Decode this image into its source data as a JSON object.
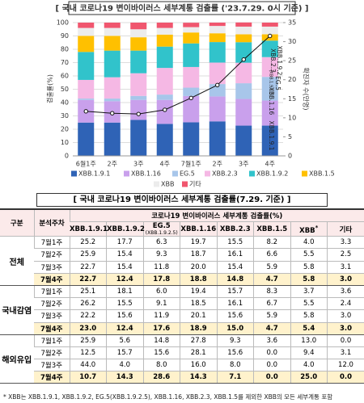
{
  "chart_data": {
    "type": "bar",
    "stacked": true,
    "title": "[ 국내 코로나19 변이바이러스 세부계통 검출률 ('23.7.29. 0시 기준) ]",
    "y_label": "검출률(%)",
    "y2_label": "확진자 수(만명)",
    "categories": [
      "6월1주",
      "2주",
      "3주",
      "4주",
      "7월1주",
      "2주",
      "3주",
      "4주"
    ],
    "series": [
      {
        "name": "XBB.1.9.1",
        "color": "#2f63b6",
        "values": [
          25,
          25,
          27,
          24,
          25.2,
          25.9,
          22.7,
          22.7
        ]
      },
      {
        "name": "XBB.1.16",
        "color": "#c9a0ec",
        "values": [
          17,
          16,
          15,
          18,
          19.7,
          18.7,
          20.0,
          18.8
        ]
      },
      {
        "name": "EG.5",
        "color": "#a8c6ea",
        "values": [
          1,
          2,
          3,
          4,
          6.3,
          9.3,
          11.8,
          17.8
        ]
      },
      {
        "name": "XBB.2.3",
        "color": "#f5b8e4",
        "values": [
          14,
          16,
          17,
          20,
          15.5,
          16.1,
          15.4,
          14.8
        ]
      },
      {
        "name": "XBB.1.9.2",
        "color": "#31c3cb",
        "values": [
          21,
          20,
          17,
          16,
          17.7,
          15.4,
          15.4,
          12.4
        ]
      },
      {
        "name": "XBB.1.5",
        "color": "#ffc000",
        "values": [
          12,
          11,
          10,
          9,
          8.2,
          6.6,
          5.9,
          4.7
        ]
      },
      {
        "name": "XBB",
        "color": "#ececec",
        "values": [
          6,
          6,
          6,
          5,
          4.0,
          5.5,
          5.8,
          5.8
        ]
      },
      {
        "name": "기타",
        "color": "#f0566e",
        "values": [
          4,
          4,
          5,
          4,
          3.3,
          2.5,
          3.1,
          3.0
        ]
      },
      {
        "name": "확진자 수",
        "color": "#111111",
        "type": "line",
        "axis": "y2",
        "values": [
          11.7,
          11.2,
          11.0,
          12.1,
          15.2,
          18.6,
          25.3,
          31.5
        ]
      }
    ],
    "ylim": [
      0,
      100
    ],
    "yticks": [
      0,
      10,
      20,
      30,
      40,
      50,
      60,
      70,
      80,
      90,
      100
    ],
    "y2lim": [
      0,
      35
    ],
    "y2ticks": [
      0,
      5,
      10,
      15,
      20,
      25,
      30,
      35
    ],
    "grid": true,
    "annotations": [
      "XBB.1.9.1",
      "XBB.1.16",
      "EG.5",
      "(XBB.1.9.2.5)",
      "XBB.2.3",
      "XBB.1.9.2"
    ]
  },
  "table": {
    "title": "[ 국내 코로나19 변이바이러스 세부계통 검출률(7.29. 기준) ]",
    "header_group": "구분",
    "header_period": "분석주차",
    "header_main": "코로나19 변이바이러스 세부계통 검출률(%)",
    "columns": [
      {
        "label": "XBB.1.9.1"
      },
      {
        "label": "XBB.1.9.2"
      },
      {
        "label": "EG.5",
        "sub": "(XBB.1.9.2.5)"
      },
      {
        "label": "XBB.1.16"
      },
      {
        "label": "XBB.2.3"
      },
      {
        "label": "XBB.1.5"
      },
      {
        "label": "XBB",
        "sup": "*"
      },
      {
        "label": "기타"
      }
    ],
    "groups": [
      {
        "name": "전체",
        "rows": [
          {
            "week": "7월1주",
            "values": [
              "25.2",
              "17.7",
              "6.3",
              "19.7",
              "15.5",
              "8.2",
              "4.0",
              "3.3"
            ]
          },
          {
            "week": "7월2주",
            "values": [
              "25.9",
              "15.4",
              "9.3",
              "18.7",
              "16.1",
              "6.6",
              "5.5",
              "2.5"
            ]
          },
          {
            "week": "7월3주",
            "values": [
              "22.7",
              "15.4",
              "11.8",
              "20.0",
              "15.4",
              "5.9",
              "5.8",
              "3.1"
            ]
          },
          {
            "week": "7월4주",
            "values": [
              "22.7",
              "12.4",
              "17.8",
              "18.8",
              "14.8",
              "4.7",
              "5.8",
              "3.0"
            ]
          }
        ]
      },
      {
        "name": "국내감염",
        "rows": [
          {
            "week": "7월1주",
            "values": [
              "25.1",
              "18.1",
              "6.0",
              "19.4",
              "15.7",
              "8.3",
              "3.7",
              "3.6"
            ]
          },
          {
            "week": "7월2주",
            "values": [
              "26.2",
              "15.5",
              "9.1",
              "18.5",
              "16.1",
              "6.7",
              "5.5",
              "2.4"
            ]
          },
          {
            "week": "7월3주",
            "values": [
              "22.2",
              "15.6",
              "11.9",
              "20.1",
              "15.6",
              "5.9",
              "5.8",
              "3.0"
            ]
          },
          {
            "week": "7월4주",
            "values": [
              "23.0",
              "12.4",
              "17.6",
              "18.9",
              "15.0",
              "4.7",
              "5.4",
              "3.0"
            ]
          }
        ]
      },
      {
        "name": "해외유입",
        "rows": [
          {
            "week": "7월1주",
            "values": [
              "25.9",
              "5.6",
              "14.8",
              "27.8",
              "9.3",
              "3.6",
              "13.0",
              "0.0"
            ]
          },
          {
            "week": "7월2주",
            "values": [
              "12.5",
              "15.7",
              "15.6",
              "28.1",
              "15.6",
              "0.0",
              "9.4",
              "3.1"
            ]
          },
          {
            "week": "7월3주",
            "values": [
              "44.0",
              "4.0",
              "8.0",
              "16.0",
              "8.0",
              "0.0",
              "4.0",
              "12.0"
            ]
          },
          {
            "week": "7월4주",
            "values": [
              "10.7",
              "14.3",
              "28.6",
              "14.3",
              "7.1",
              "0.0",
              "25.0",
              "0.0"
            ]
          }
        ]
      }
    ],
    "footnote": "* XBB는 XBB.1.9.1, XBB.1.9.2, EG.5(XBB.1.9.2.5), XBB.1.16, XBB.2.3, XBB.1.5를 제외한 XBB의 모든 세부계통 포함"
  }
}
